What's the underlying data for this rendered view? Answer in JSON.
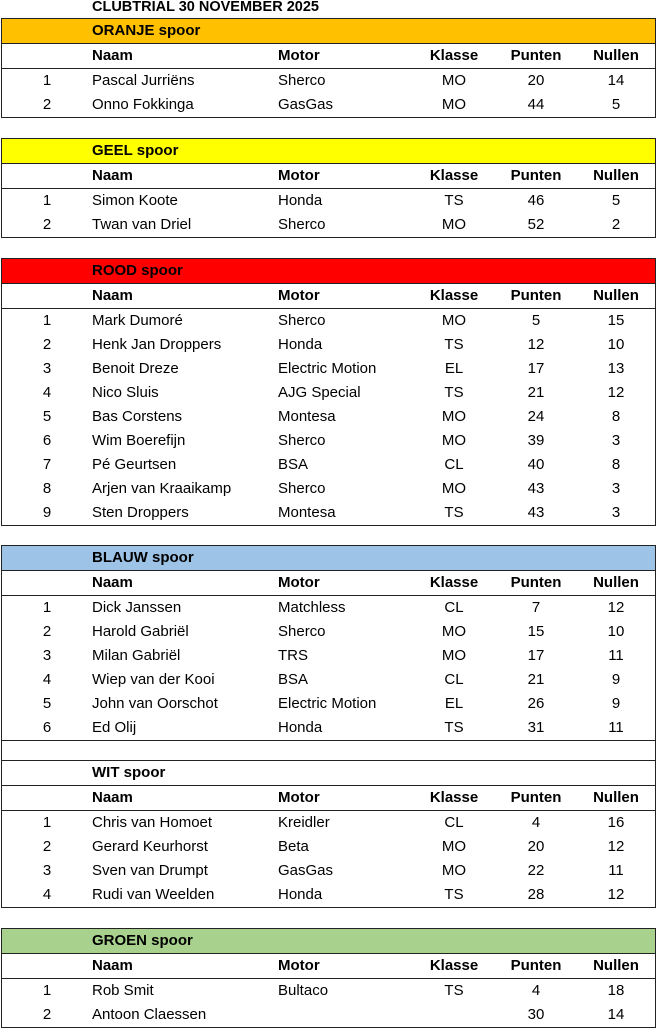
{
  "title": "CLUBTRIAL 30 NOVEMBER 2025",
  "columns": {
    "naam": "Naam",
    "motor": "Motor",
    "klasse": "Klasse",
    "punten": "Punten",
    "nullen": "Nullen"
  },
  "sections": [
    {
      "name": "ORANJE spoor",
      "color": "#FFC000",
      "rows": [
        [
          "1",
          "Pascal Jurriëns",
          "Sherco",
          "MO",
          "20",
          "14"
        ],
        [
          "2",
          "Onno Fokkinga",
          "GasGas",
          "MO",
          "44",
          "5"
        ]
      ]
    },
    {
      "name": "GEEL spoor",
      "color": "#FFFF00",
      "rows": [
        [
          "1",
          "Simon Koote",
          "Honda",
          "TS",
          "46",
          "5"
        ],
        [
          "2",
          "Twan van Driel",
          "Sherco",
          "MO",
          "52",
          "2"
        ]
      ]
    },
    {
      "name": "ROOD spoor",
      "color": "#FF0000",
      "rows": [
        [
          "1",
          "Mark Dumoré",
          "Sherco",
          "MO",
          "5",
          "15"
        ],
        [
          "2",
          "Henk Jan Droppers",
          "Honda",
          "TS",
          "12",
          "10"
        ],
        [
          "3",
          "Benoit Dreze",
          "Electric Motion",
          "EL",
          "17",
          "13"
        ],
        [
          "4",
          "Nico Sluis",
          "AJG Special",
          "TS",
          "21",
          "12"
        ],
        [
          "5",
          "Bas Corstens",
          "Montesa",
          "MO",
          "24",
          "8"
        ],
        [
          "6",
          "Wim Boerefijn",
          "Sherco",
          "MO",
          "39",
          "3"
        ],
        [
          "7",
          "Pé Geurtsen",
          "BSA",
          "CL",
          "40",
          "8"
        ],
        [
          "8",
          "Arjen van Kraaikamp",
          "Sherco",
          "MO",
          "43",
          "3"
        ],
        [
          "9",
          "Sten Droppers",
          "Montesa",
          "TS",
          "43",
          "3"
        ]
      ]
    },
    {
      "name": "BLAUW spoor",
      "color": "#9DC3E6",
      "rows": [
        [
          "1",
          "Dick Janssen",
          "Matchless",
          "CL",
          "7",
          "12"
        ],
        [
          "2",
          "Harold Gabriël",
          "Sherco",
          "MO",
          "15",
          "10"
        ],
        [
          "3",
          "Milan Gabriël",
          "TRS",
          "MO",
          "17",
          "11"
        ],
        [
          "4",
          "Wiep van der Kooi",
          "BSA",
          "CL",
          "21",
          "9"
        ],
        [
          "5",
          "John van Oorschot",
          "Electric Motion",
          "EL",
          "26",
          "9"
        ],
        [
          "6",
          "Ed Olij",
          "Honda",
          "TS",
          "31",
          "11"
        ]
      ]
    },
    {
      "name": "WIT spoor",
      "color": "#FFFFFF",
      "rows": [
        [
          "1",
          "Chris van Homoet",
          "Kreidler",
          "CL",
          "4",
          "16"
        ],
        [
          "2",
          "Gerard Keurhorst",
          "Beta",
          "MO",
          "20",
          "12"
        ],
        [
          "3",
          "Sven van Drumpt",
          "GasGas",
          "MO",
          "22",
          "11"
        ],
        [
          "4",
          "Rudi van Weelden",
          "Honda",
          "TS",
          "28",
          "12"
        ]
      ]
    },
    {
      "name": "GROEN spoor",
      "color": "#A9D18E",
      "rows": [
        [
          "1",
          "Rob Smit",
          "Bultaco",
          "TS",
          "4",
          "18"
        ],
        [
          "2",
          "Antoon Claessen",
          "",
          "",
          "30",
          "14"
        ]
      ]
    }
  ]
}
